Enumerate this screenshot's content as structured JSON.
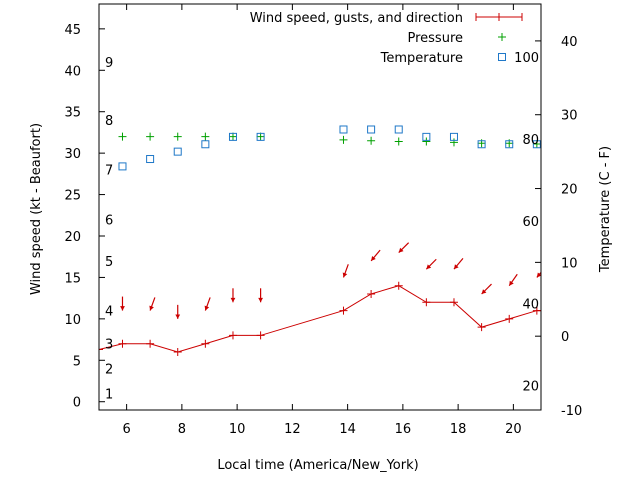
{
  "chart_data": {
    "type": "line",
    "title": "",
    "xlabel": "Local time (America/New_York)",
    "ylabel": "Wind speed (kt - Beaufort)",
    "y2label": "Temperature (C - F)",
    "xlim": [
      5,
      21
    ],
    "ylim": [
      -1,
      48
    ],
    "y2lim": [
      -10,
      45
    ],
    "x_ticks": [
      6,
      8,
      10,
      12,
      14,
      16,
      18,
      20
    ],
    "y_ticks": [
      0,
      5,
      10,
      15,
      20,
      25,
      30,
      35,
      40,
      45
    ],
    "y2_ticks": [
      -10,
      0,
      10,
      20,
      30,
      40
    ],
    "beaufort_labels": [
      {
        "label": "1",
        "kt": 1
      },
      {
        "label": "2",
        "kt": 4
      },
      {
        "label": "3",
        "kt": 7
      },
      {
        "label": "4",
        "kt": 11
      },
      {
        "label": "5",
        "kt": 17
      },
      {
        "label": "6",
        "kt": 22
      },
      {
        "label": "7",
        "kt": 28
      },
      {
        "label": "8",
        "kt": 34
      },
      {
        "label": "9",
        "kt": 41
      }
    ],
    "fahrenheit_labels": [
      {
        "label": "20",
        "c": -6.7
      },
      {
        "label": "40",
        "c": 4.4
      },
      {
        "label": "60",
        "c": 15.6
      },
      {
        "label": "80",
        "c": 26.7
      },
      {
        "label": "100",
        "c": 37.8
      }
    ],
    "legend_position": "top-right",
    "series": [
      {
        "name": "Wind speed, gusts, and direction",
        "color": "#cc0000",
        "x": [
          5,
          5.85,
          6.85,
          7.85,
          8.85,
          9.85,
          10.85,
          13.85,
          14.85,
          15.85,
          16.85,
          17.85,
          18.85,
          19.85,
          20.85,
          21
        ],
        "y": [
          6.3,
          7,
          7,
          6,
          7,
          8,
          8,
          11,
          13,
          14,
          12,
          12,
          9,
          10,
          11,
          11
        ]
      },
      {
        "name": "Pressure",
        "color": "#00a000",
        "x": [
          5.85,
          6.85,
          7.85,
          8.85,
          9.85,
          10.85,
          13.85,
          14.85,
          15.85,
          16.85,
          17.85,
          18.85,
          19.85,
          20.85
        ],
        "y": [
          32,
          32,
          32,
          32,
          32,
          32,
          31.6,
          31.5,
          31.4,
          31.4,
          31.3,
          31.2,
          31.2,
          31.1
        ]
      },
      {
        "name": "Temperature",
        "color": "#1f78c8",
        "axis": "y2",
        "x": [
          5.85,
          6.85,
          7.85,
          8.85,
          9.85,
          10.85,
          13.85,
          14.85,
          15.85,
          16.85,
          17.85,
          18.85,
          19.85,
          20.85
        ],
        "y": [
          23,
          24,
          25,
          26,
          27,
          27,
          28,
          28,
          28,
          27,
          27,
          26,
          26,
          26
        ]
      }
    ],
    "wind_direction_arrows": {
      "color": "#cc0000",
      "x": [
        5.85,
        6.85,
        7.85,
        8.85,
        9.85,
        10.85,
        13.85,
        14.85,
        15.85,
        16.85,
        17.85,
        18.85,
        19.85,
        20.85
      ],
      "kt": [
        11,
        11,
        10,
        11,
        12,
        12,
        15,
        17,
        18,
        16,
        16,
        13,
        14,
        15
      ],
      "direction_deg": [
        180,
        200,
        180,
        200,
        180,
        180,
        200,
        220,
        225,
        225,
        220,
        225,
        215,
        220
      ]
    }
  }
}
